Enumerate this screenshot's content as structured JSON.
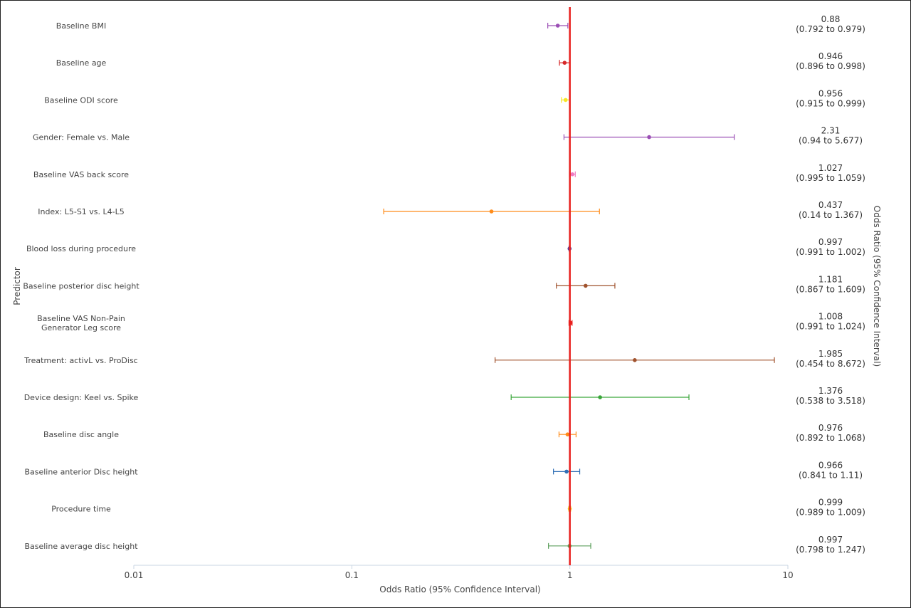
{
  "chart_data": {
    "type": "forest",
    "xlabel": "Odds Ratio (95% Confidence Interval)",
    "ylabel": "Predictor",
    "right_axis_label": "Odds Ratio (95% Confidence Interval)",
    "x_scale": "log",
    "xlim": [
      0.01,
      10
    ],
    "x_ticks": [
      "0.01",
      "0.1",
      "1",
      "10"
    ],
    "reference_line": {
      "x": 1,
      "color": "#e8201e"
    },
    "rows": [
      {
        "predictor": "Baseline BMI",
        "or": 0.88,
        "low": 0.792,
        "high": 0.979,
        "or_text": "0.88",
        "ci_text": "(0.792 to 0.979)",
        "color": "#9b4fb5"
      },
      {
        "predictor": "Baseline age",
        "or": 0.946,
        "low": 0.896,
        "high": 0.998,
        "or_text": "0.946",
        "ci_text": "(0.896 to 0.998)",
        "color": "#d62728"
      },
      {
        "predictor": "Baseline ODI score",
        "or": 0.956,
        "low": 0.915,
        "high": 0.999,
        "or_text": "0.956",
        "ci_text": "(0.915 to 0.999)",
        "color": "#f5e626"
      },
      {
        "predictor": "Gender: Female vs. Male",
        "or": 2.31,
        "low": 0.94,
        "high": 5.677,
        "or_text": "2.31",
        "ci_text": "(0.94 to 5.677)",
        "color": "#9b4fb5"
      },
      {
        "predictor": "Baseline VAS back score",
        "or": 1.027,
        "low": 0.995,
        "high": 1.059,
        "or_text": "1.027",
        "ci_text": "(0.995 to 1.059)",
        "color": "#f07ac0"
      },
      {
        "predictor": "Index: L5-S1 vs. L4-L5",
        "or": 0.437,
        "low": 0.14,
        "high": 1.367,
        "or_text": "0.437",
        "ci_text": "(0.14 to 1.367)",
        "color": "#ff8c1a"
      },
      {
        "predictor": "Blood loss during procedure",
        "or": 0.997,
        "low": 0.991,
        "high": 1.002,
        "or_text": "0.997",
        "ci_text": "(0.991 to 1.002)",
        "color": "#5b3f9e"
      },
      {
        "predictor": "Baseline posterior disc height",
        "or": 1.181,
        "low": 0.867,
        "high": 1.609,
        "or_text": "1.181",
        "ci_text": "(0.867 to 1.609)",
        "color": "#a0522d"
      },
      {
        "predictor": "Baseline VAS Non-Pain Generator Leg score",
        "predictor_lines": [
          "Baseline VAS Non-Pain",
          "Generator Leg score"
        ],
        "or": 1.008,
        "low": 0.991,
        "high": 1.024,
        "or_text": "1.008",
        "ci_text": "(0.991 to 1.024)",
        "color": "#e8201e"
      },
      {
        "predictor": "Treatment: activL vs. ProDisc",
        "or": 1.985,
        "low": 0.454,
        "high": 8.672,
        "or_text": "1.985",
        "ci_text": "(0.454 to 8.672)",
        "color": "#a0522d"
      },
      {
        "predictor": "Device design: Keel vs. Spike",
        "or": 1.376,
        "low": 0.538,
        "high": 3.518,
        "or_text": "1.376",
        "ci_text": "(0.538 to 3.518)",
        "color": "#3aa63a"
      },
      {
        "predictor": "Baseline disc angle",
        "or": 0.976,
        "low": 0.892,
        "high": 1.068,
        "or_text": "0.976",
        "ci_text": "(0.892 to 1.068)",
        "color": "#ff8c1a"
      },
      {
        "predictor": "Baseline anterior Disc height",
        "or": 0.966,
        "low": 0.841,
        "high": 1.11,
        "or_text": "0.966",
        "ci_text": "(0.841 to 1.11)",
        "color": "#2f6fb5"
      },
      {
        "predictor": "Procedure time",
        "or": 0.999,
        "low": 0.989,
        "high": 1.009,
        "or_text": "0.999",
        "ci_text": "(0.989 to 1.009)",
        "color": "#f5c518"
      },
      {
        "predictor": "Baseline average disc height",
        "or": 0.997,
        "low": 0.798,
        "high": 1.247,
        "or_text": "0.997",
        "ci_text": "(0.798 to 1.247)",
        "color": "#5a9e5a"
      }
    ]
  }
}
